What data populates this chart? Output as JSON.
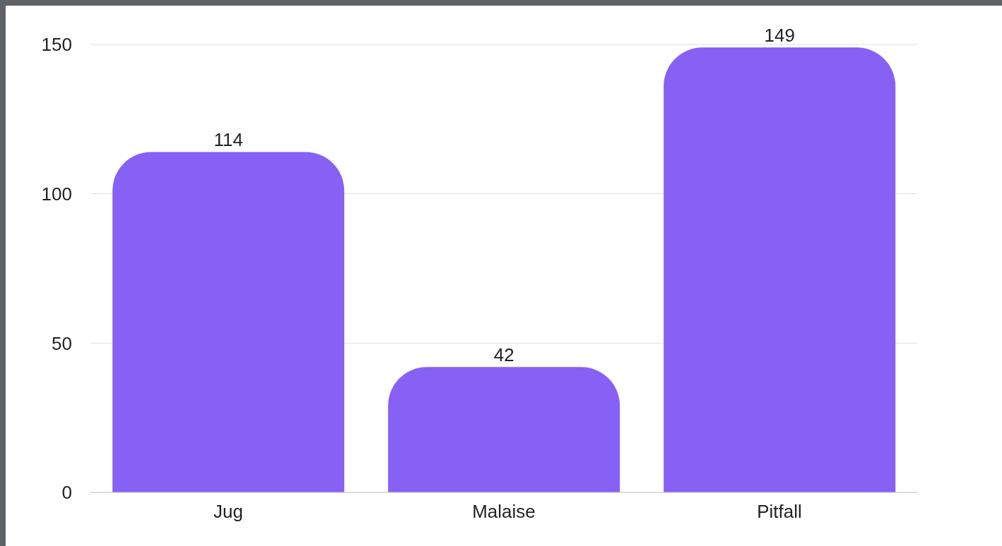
{
  "chart_data": {
    "type": "bar",
    "categories": [
      "Jug",
      "Malaise",
      "Pitfall"
    ],
    "values": [
      114,
      42,
      149
    ],
    "color": "#8661f4",
    "ylim": [
      0,
      150
    ],
    "yticks": [
      0,
      50,
      100,
      150
    ],
    "grid": "y",
    "data_labels": true
  }
}
